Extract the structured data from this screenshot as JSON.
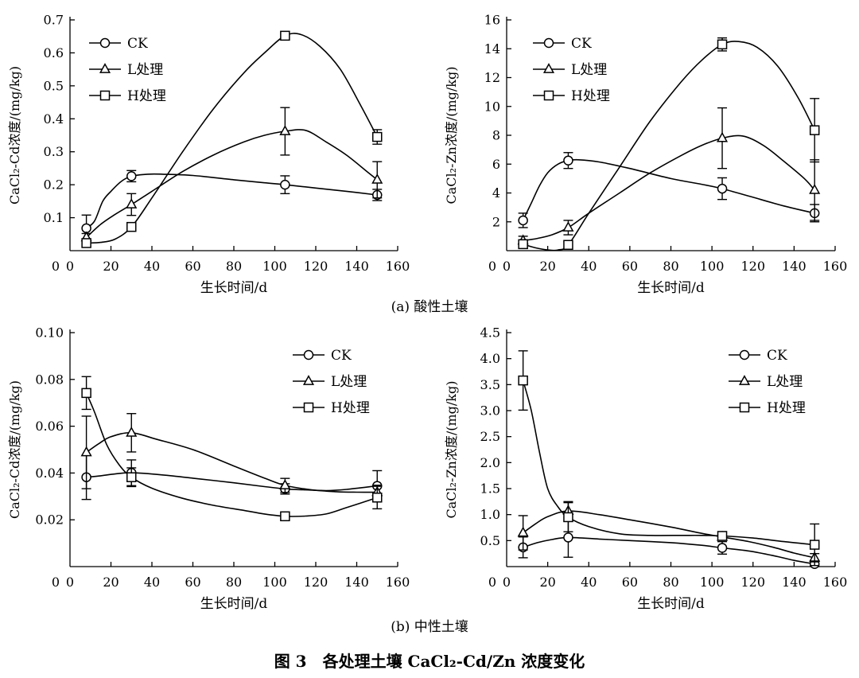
{
  "figure": {
    "caption_a": "(a) 酸性土壤",
    "caption_b": "(b) 中性土壤",
    "title": "图 3　各处理土壤 CaCl₂-Cd/Zn 浓度变化"
  },
  "colors": {
    "line": "#000000",
    "marker_fill": "#ffffff",
    "background": "#ffffff"
  },
  "chart_data": [
    {
      "id": "acid-cd",
      "type": "line",
      "xlabel": "生长时间/d",
      "ylabel": "CaCl₂-Cd浓度/(mg/kg)",
      "xlim": [
        0,
        160
      ],
      "ylim": [
        0,
        0.7
      ],
      "xticks": [
        0,
        20,
        40,
        60,
        80,
        100,
        120,
        140,
        160
      ],
      "xticklabels": [
        "0",
        "20",
        "40",
        "60",
        "80",
        "100",
        "120",
        "140",
        "160"
      ],
      "yticks": [
        0.1,
        0.2,
        0.3,
        0.4,
        0.5,
        0.6,
        0.7
      ],
      "yticklabels": [
        "0.1",
        "0.2",
        "0.3",
        "0.4",
        "0.5",
        "0.6",
        "0.7"
      ],
      "legend_position": "top-left",
      "x": [
        8,
        30,
        105,
        150
      ],
      "series": [
        {
          "name": "CK",
          "marker": "circle",
          "values": [
            0.068,
            0.226,
            0.2,
            0.169
          ],
          "errors": [
            0.04,
            0.017,
            0.027,
            0.017
          ],
          "curve": [
            [
              8,
              0.068
            ],
            [
              12,
              0.09
            ],
            [
              16,
              0.15
            ],
            [
              20,
              0.18
            ],
            [
              25,
              0.21
            ],
            [
              30,
              0.226
            ],
            [
              38,
              0.232
            ],
            [
              45,
              0.232
            ],
            [
              60,
              0.228
            ],
            [
              80,
              0.215
            ],
            [
              95,
              0.206
            ],
            [
              105,
              0.2
            ],
            [
              120,
              0.19
            ],
            [
              135,
              0.18
            ],
            [
              150,
              0.169
            ]
          ]
        },
        {
          "name": "L处理",
          "marker": "triangle",
          "values": [
            0.04,
            0.14,
            0.362,
            0.215
          ],
          "errors": [
            0.012,
            0.033,
            0.072,
            0.055
          ],
          "curve": [
            [
              8,
              0.04
            ],
            [
              15,
              0.08
            ],
            [
              22,
              0.11
            ],
            [
              30,
              0.14
            ],
            [
              40,
              0.18
            ],
            [
              55,
              0.24
            ],
            [
              70,
              0.29
            ],
            [
              85,
              0.33
            ],
            [
              95,
              0.35
            ],
            [
              105,
              0.362
            ],
            [
              115,
              0.365
            ],
            [
              125,
              0.33
            ],
            [
              135,
              0.29
            ],
            [
              145,
              0.24
            ],
            [
              150,
              0.215
            ]
          ]
        },
        {
          "name": "H处理",
          "marker": "square",
          "values": [
            0.023,
            0.072,
            0.652,
            0.345
          ],
          "errors": [
            0.01,
            0.009,
            0.005,
            0.022
          ],
          "curve": [
            [
              8,
              0.023
            ],
            [
              15,
              0.025
            ],
            [
              22,
              0.035
            ],
            [
              30,
              0.072
            ],
            [
              40,
              0.16
            ],
            [
              55,
              0.3
            ],
            [
              70,
              0.43
            ],
            [
              85,
              0.54
            ],
            [
              95,
              0.6
            ],
            [
              105,
              0.652
            ],
            [
              113,
              0.655
            ],
            [
              122,
              0.62
            ],
            [
              132,
              0.55
            ],
            [
              142,
              0.44
            ],
            [
              150,
              0.345
            ]
          ]
        }
      ]
    },
    {
      "id": "acid-zn",
      "type": "line",
      "xlabel": "生长时间/d",
      "ylabel": "CaCl₂-Zn浓度/(mg/kg)",
      "xlim": [
        0,
        160
      ],
      "ylim": [
        0,
        16
      ],
      "xticks": [
        0,
        20,
        40,
        60,
        80,
        100,
        120,
        140,
        160
      ],
      "xticklabels": [
        "0",
        "20",
        "40",
        "60",
        "80",
        "100",
        "120",
        "140",
        "160"
      ],
      "yticks": [
        2,
        4,
        6,
        8,
        10,
        12,
        14,
        16
      ],
      "yticklabels": [
        "2",
        "4",
        "6",
        "8",
        "10",
        "12",
        "14",
        "16"
      ],
      "legend_position": "top-left",
      "x": [
        8,
        30,
        105,
        150
      ],
      "series": [
        {
          "name": "CK",
          "marker": "circle",
          "values": [
            2.1,
            6.25,
            4.3,
            2.6
          ],
          "errors": [
            0.5,
            0.55,
            0.75,
            0.6
          ],
          "curve": [
            [
              8,
              2.1
            ],
            [
              12,
              3.3
            ],
            [
              16,
              4.5
            ],
            [
              20,
              5.4
            ],
            [
              25,
              6.0
            ],
            [
              30,
              6.25
            ],
            [
              35,
              6.3
            ],
            [
              45,
              6.15
            ],
            [
              60,
              5.7
            ],
            [
              80,
              5.0
            ],
            [
              95,
              4.6
            ],
            [
              105,
              4.3
            ],
            [
              120,
              3.7
            ],
            [
              135,
              3.1
            ],
            [
              150,
              2.6
            ]
          ]
        },
        {
          "name": "L处理",
          "marker": "triangle",
          "values": [
            0.7,
            1.6,
            7.8,
            4.2
          ],
          "errors": [
            0.3,
            0.5,
            2.1,
            2.1
          ],
          "curve": [
            [
              8,
              0.7
            ],
            [
              15,
              0.85
            ],
            [
              22,
              1.1
            ],
            [
              30,
              1.6
            ],
            [
              40,
              2.6
            ],
            [
              55,
              4.0
            ],
            [
              70,
              5.4
            ],
            [
              85,
              6.6
            ],
            [
              95,
              7.3
            ],
            [
              105,
              7.8
            ],
            [
              115,
              7.95
            ],
            [
              125,
              7.3
            ],
            [
              135,
              6.2
            ],
            [
              145,
              5.0
            ],
            [
              150,
              4.2
            ]
          ]
        },
        {
          "name": "H处理",
          "marker": "square",
          "values": [
            0.45,
            0.4,
            14.3,
            8.35
          ],
          "errors": [
            0.3,
            0.2,
            0.45,
            2.2
          ],
          "curve": [
            [
              8,
              0.45
            ],
            [
              14,
              0.2
            ],
            [
              20,
              0.05
            ],
            [
              25,
              0.05
            ],
            [
              30,
              0.4
            ],
            [
              40,
              2.6
            ],
            [
              55,
              5.8
            ],
            [
              70,
              9.0
            ],
            [
              85,
              11.7
            ],
            [
              95,
              13.2
            ],
            [
              105,
              14.3
            ],
            [
              113,
              14.5
            ],
            [
              122,
              14.1
            ],
            [
              132,
              12.8
            ],
            [
              142,
              10.6
            ],
            [
              150,
              8.35
            ]
          ]
        }
      ]
    },
    {
      "id": "neutral-cd",
      "type": "line",
      "xlabel": "生长时间/d",
      "ylabel": "CaCl₂-Cd浓度/(mg/kg)",
      "xlim": [
        0,
        160
      ],
      "ylim": [
        0,
        0.1
      ],
      "xticks": [
        0,
        20,
        40,
        60,
        80,
        100,
        120,
        140,
        160
      ],
      "xticklabels": [
        "0",
        "20",
        "40",
        "60",
        "80",
        "100",
        "120",
        "140",
        "160"
      ],
      "yticks": [
        0.02,
        0.04,
        0.06,
        0.08,
        0.1
      ],
      "yticklabels": [
        "0.02",
        "0.04",
        "0.06",
        "0.08",
        "0.10"
      ],
      "legend_position": "top-right",
      "x": [
        8,
        30,
        105,
        150
      ],
      "series": [
        {
          "name": "CK",
          "marker": "circle",
          "values": [
            0.0382,
            0.0401,
            0.0332,
            0.0345
          ],
          "errors": [
            0.0095,
            0.0055,
            0.0022,
            0.0065
          ],
          "curve": [
            [
              8,
              0.0382
            ],
            [
              15,
              0.0388
            ],
            [
              22,
              0.0396
            ],
            [
              30,
              0.0401
            ],
            [
              45,
              0.0392
            ],
            [
              60,
              0.0378
            ],
            [
              80,
              0.0358
            ],
            [
              95,
              0.0342
            ],
            [
              105,
              0.0332
            ],
            [
              115,
              0.0328
            ],
            [
              125,
              0.0325
            ],
            [
              135,
              0.033
            ],
            [
              150,
              0.0345
            ]
          ]
        },
        {
          "name": "L处理",
          "marker": "triangle",
          "values": [
            0.0488,
            0.0572,
            0.0347,
            0.0318
          ],
          "errors": [
            0.0155,
            0.0082,
            0.003,
            0.003
          ],
          "curve": [
            [
              8,
              0.0488
            ],
            [
              14,
              0.0525
            ],
            [
              20,
              0.0555
            ],
            [
              30,
              0.0572
            ],
            [
              42,
              0.0545
            ],
            [
              60,
              0.05
            ],
            [
              80,
              0.043
            ],
            [
              95,
              0.0378
            ],
            [
              105,
              0.0347
            ],
            [
              118,
              0.0328
            ],
            [
              130,
              0.032
            ],
            [
              140,
              0.0318
            ],
            [
              150,
              0.0318
            ]
          ]
        },
        {
          "name": "H处理",
          "marker": "square",
          "values": [
            0.0742,
            0.0382,
            0.0215,
            0.0295
          ],
          "errors": [
            0.007,
            0.004,
            0.0012,
            0.0048
          ],
          "curve": [
            [
              8,
              0.0742
            ],
            [
              12,
              0.066
            ],
            [
              18,
              0.052
            ],
            [
              24,
              0.0435
            ],
            [
              30,
              0.0382
            ],
            [
              40,
              0.0335
            ],
            [
              55,
              0.0292
            ],
            [
              70,
              0.0262
            ],
            [
              85,
              0.024
            ],
            [
              95,
              0.0225
            ],
            [
              105,
              0.0215
            ],
            [
              115,
              0.0216
            ],
            [
              125,
              0.0225
            ],
            [
              135,
              0.0252
            ],
            [
              150,
              0.0295
            ]
          ]
        }
      ]
    },
    {
      "id": "neutral-zn",
      "type": "line",
      "xlabel": "生长时间/d",
      "ylabel": "CaCl₂-Zn浓度/(mg/kg)",
      "xlim": [
        0,
        160
      ],
      "ylim": [
        0,
        4.5
      ],
      "xticks": [
        0,
        20,
        40,
        60,
        80,
        100,
        120,
        140,
        160
      ],
      "xticklabels": [
        "0",
        "20",
        "40",
        "60",
        "80",
        "100",
        "120",
        "140",
        "160"
      ],
      "yticks": [
        0.5,
        1.0,
        1.5,
        2.0,
        2.5,
        3.0,
        3.5,
        4.0,
        4.5
      ],
      "yticklabels": [
        "0.5",
        "1.0",
        "1.5",
        "2.0",
        "2.5",
        "3.0",
        "3.5",
        "4.0",
        "4.5"
      ],
      "legend_position": "top-right",
      "x": [
        8,
        30,
        105,
        150
      ],
      "series": [
        {
          "name": "CK",
          "marker": "circle",
          "values": [
            0.37,
            0.56,
            0.36,
            0.05
          ],
          "errors": [
            0.2,
            0.38,
            0.12,
            0.05
          ],
          "curve": [
            [
              8,
              0.37
            ],
            [
              15,
              0.46
            ],
            [
              22,
              0.52
            ],
            [
              30,
              0.56
            ],
            [
              45,
              0.53
            ],
            [
              60,
              0.5
            ],
            [
              80,
              0.46
            ],
            [
              95,
              0.41
            ],
            [
              105,
              0.36
            ],
            [
              118,
              0.3
            ],
            [
              130,
              0.21
            ],
            [
              140,
              0.12
            ],
            [
              150,
              0.05
            ]
          ]
        },
        {
          "name": "L处理",
          "marker": "triangle",
          "values": [
            0.65,
            1.07,
            0.57,
            0.17
          ],
          "errors": [
            0.33,
            0.18,
            0.06,
            0.08
          ],
          "curve": [
            [
              8,
              0.65
            ],
            [
              14,
              0.82
            ],
            [
              20,
              0.96
            ],
            [
              30,
              1.07
            ],
            [
              45,
              1.0
            ],
            [
              60,
              0.9
            ],
            [
              80,
              0.76
            ],
            [
              95,
              0.64
            ],
            [
              105,
              0.57
            ],
            [
              118,
              0.48
            ],
            [
              130,
              0.37
            ],
            [
              140,
              0.26
            ],
            [
              150,
              0.17
            ]
          ]
        },
        {
          "name": "H处理",
          "marker": "square",
          "values": [
            3.58,
            0.95,
            0.59,
            0.42
          ],
          "errors": [
            0.57,
            0.28,
            0.08,
            0.4
          ],
          "curve": [
            [
              8,
              3.58
            ],
            [
              12,
              3.0
            ],
            [
              16,
              2.2
            ],
            [
              20,
              1.5
            ],
            [
              25,
              1.15
            ],
            [
              30,
              0.95
            ],
            [
              40,
              0.77
            ],
            [
              55,
              0.63
            ],
            [
              70,
              0.6
            ],
            [
              85,
              0.6
            ],
            [
              95,
              0.6
            ],
            [
              105,
              0.59
            ],
            [
              120,
              0.55
            ],
            [
              135,
              0.48
            ],
            [
              150,
              0.42
            ]
          ]
        }
      ]
    }
  ]
}
